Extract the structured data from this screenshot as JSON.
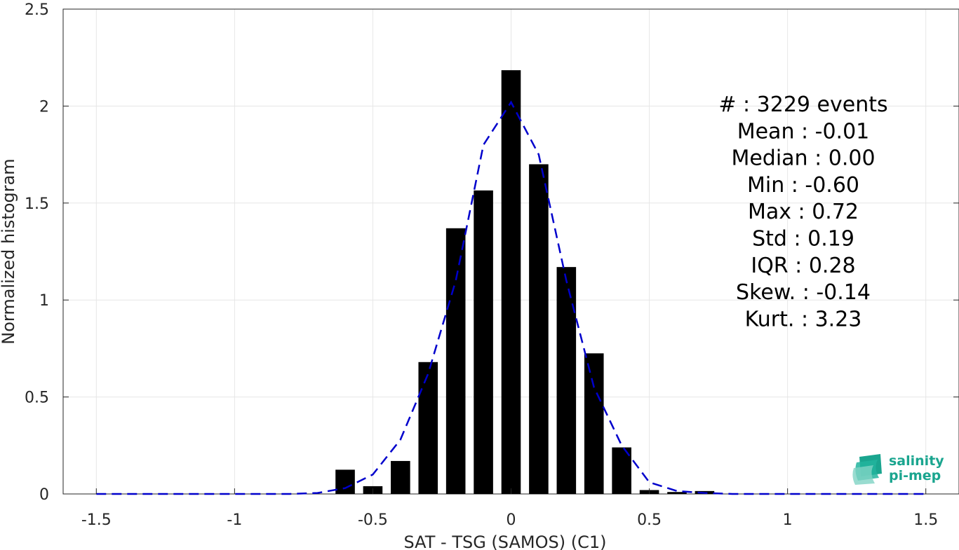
{
  "chart_data": {
    "type": "bar",
    "xlabel": "SAT - TSG (SAMOS) (C1)",
    "ylabel": "Normalized histogram",
    "xlim": [
      -1.62,
      1.62
    ],
    "ylim": [
      0,
      2.5
    ],
    "xticks": [
      -1.5,
      -1,
      -0.5,
      0,
      0.5,
      1,
      1.5
    ],
    "xtick_labels": [
      "-1.5",
      "-1",
      "-0.5",
      "0",
      "0.5",
      "1",
      "1.5"
    ],
    "yticks": [
      0,
      0.5,
      1,
      1.5,
      2,
      2.5
    ],
    "ytick_labels": [
      "0",
      "0.5",
      "1",
      "1.5",
      "2",
      "2.5"
    ],
    "grid": true,
    "bar_width": 0.07,
    "bars": {
      "x": [
        -0.6,
        -0.5,
        -0.4,
        -0.3,
        -0.2,
        -0.1,
        0.0,
        0.1,
        0.2,
        0.3,
        0.4,
        0.5,
        0.6,
        0.7
      ],
      "values": [
        0.125,
        0.04,
        0.17,
        0.68,
        1.37,
        1.565,
        2.185,
        1.7,
        1.17,
        0.725,
        0.24,
        0.02,
        0.01,
        0.015
      ],
      "color": "#000000"
    },
    "fit_curve": {
      "style": "dashed",
      "color": "#0000cc",
      "x": [
        -1.5,
        -1.4,
        -1.3,
        -1.2,
        -1.1,
        -1.0,
        -0.9,
        -0.8,
        -0.7,
        -0.6,
        -0.5,
        -0.4,
        -0.3,
        -0.2,
        -0.1,
        0.0,
        0.1,
        0.2,
        0.3,
        0.4,
        0.5,
        0.6,
        0.7,
        0.8,
        0.9,
        1.0,
        1.1,
        1.2,
        1.3,
        1.4,
        1.5
      ],
      "y": [
        0,
        0,
        0,
        0,
        0,
        0,
        0,
        0,
        0.005,
        0.03,
        0.1,
        0.28,
        0.62,
        1.1,
        1.8,
        2.02,
        1.75,
        1.1,
        0.55,
        0.25,
        0.06,
        0.015,
        0.005,
        0,
        0,
        0,
        0,
        0,
        0,
        0,
        0
      ]
    },
    "stats_lines": [
      "#  : 3229 events",
      "Mean : -0.01",
      "Median : 0.00",
      "Min : -0.60",
      "Max : 0.72",
      "Std : 0.19",
      "IQR : 0.28",
      "Skew. : -0.14",
      "Kurt. : 3.23"
    ]
  },
  "logo": {
    "line1": "salinity",
    "line2": "pi-mep",
    "color": "#1aa58f"
  }
}
